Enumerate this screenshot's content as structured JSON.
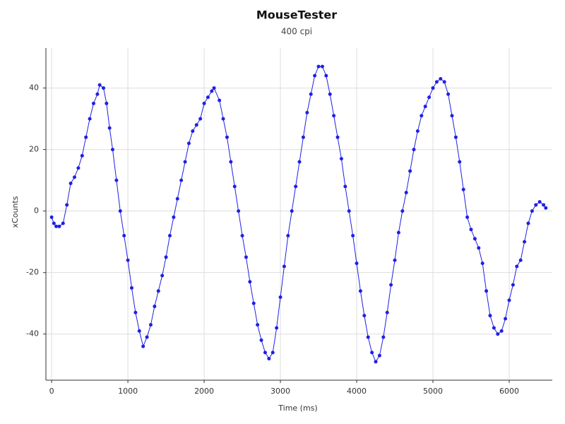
{
  "chart_data": {
    "type": "line",
    "title": "MouseTester",
    "subtitle": "400 cpi",
    "x_label": "Time (ms)",
    "y_label": "xCounts",
    "xlim": [
      -75,
      6565
    ],
    "ylim": [
      -55,
      53
    ],
    "xticks": [
      0,
      1000,
      2000,
      3000,
      4000,
      5000,
      6000
    ],
    "yticks": [
      -40,
      -20,
      0,
      20,
      40
    ],
    "grid": true,
    "markers": true,
    "x": [
      0,
      30,
      60,
      100,
      150,
      200,
      250,
      300,
      350,
      400,
      450,
      500,
      550,
      600,
      630,
      680,
      720,
      760,
      800,
      850,
      900,
      950,
      1000,
      1050,
      1100,
      1150,
      1200,
      1250,
      1300,
      1350,
      1400,
      1450,
      1500,
      1550,
      1600,
      1650,
      1700,
      1750,
      1800,
      1850,
      1900,
      1950,
      2000,
      2050,
      2100,
      2130,
      2200,
      2250,
      2300,
      2350,
      2400,
      2450,
      2500,
      2550,
      2600,
      2650,
      2700,
      2750,
      2800,
      2850,
      2900,
      2950,
      3000,
      3050,
      3100,
      3150,
      3200,
      3250,
      3300,
      3350,
      3400,
      3450,
      3500,
      3550,
      3600,
      3650,
      3700,
      3750,
      3800,
      3850,
      3900,
      3950,
      4000,
      4050,
      4100,
      4150,
      4200,
      4250,
      4300,
      4350,
      4400,
      4450,
      4500,
      4550,
      4600,
      4650,
      4700,
      4750,
      4800,
      4850,
      4900,
      4950,
      5000,
      5050,
      5100,
      5150,
      5200,
      5250,
      5300,
      5350,
      5400,
      5450,
      5500,
      5550,
      5600,
      5650,
      5700,
      5750,
      5800,
      5850,
      5900,
      5950,
      6000,
      6050,
      6100,
      6150,
      6200,
      6250,
      6300,
      6350,
      6400,
      6450,
      6480
    ],
    "series": [
      {
        "name": "xCounts",
        "color": "#1f1fe6",
        "values": [
          -2,
          -4,
          -5,
          -5,
          -4,
          2,
          9,
          11,
          14,
          18,
          24,
          30,
          35,
          38,
          41,
          40,
          35,
          27,
          20,
          10,
          0,
          -8,
          -16,
          -25,
          -33,
          -39,
          -44,
          -41,
          -37,
          -31,
          -26,
          -21,
          -15,
          -8,
          -2,
          4,
          10,
          16,
          22,
          26,
          28,
          30,
          35,
          37,
          39,
          40,
          36,
          30,
          24,
          16,
          8,
          0,
          -8,
          -15,
          -23,
          -30,
          -37,
          -42,
          -46,
          -48,
          -46,
          -38,
          -28,
          -18,
          -8,
          0,
          8,
          16,
          24,
          32,
          38,
          44,
          47,
          47,
          44,
          38,
          31,
          24,
          17,
          8,
          0,
          -8,
          -17,
          -26,
          -34,
          -41,
          -46,
          -49,
          -47,
          -41,
          -33,
          -24,
          -16,
          -7,
          0,
          6,
          13,
          20,
          26,
          31,
          34,
          37,
          40,
          42,
          43,
          42,
          38,
          31,
          24,
          16,
          7,
          -2,
          -6,
          -9,
          -12,
          -17,
          -26,
          -34,
          -38,
          -40,
          -39,
          -35,
          -29,
          -24,
          -18,
          -16,
          -10,
          -4,
          0,
          2,
          3,
          2,
          1
        ]
      }
    ]
  }
}
